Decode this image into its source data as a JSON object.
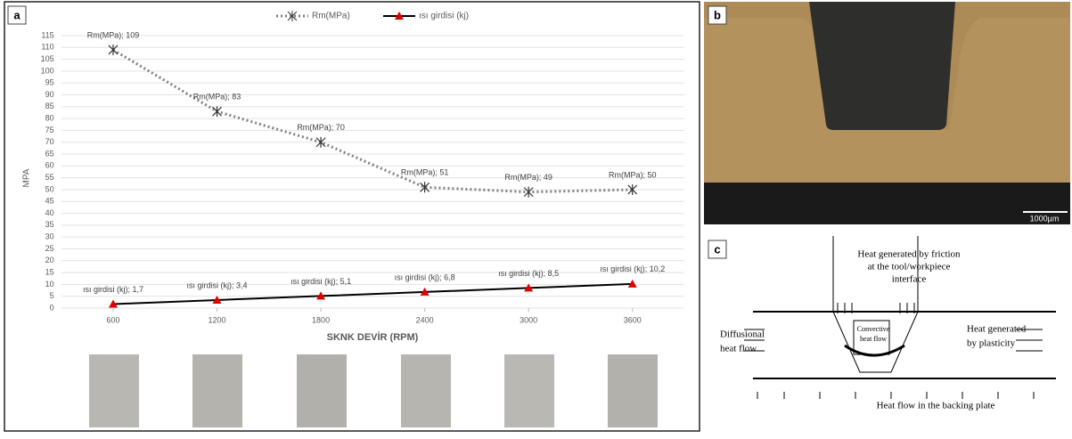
{
  "chart_data": {
    "type": "line",
    "title": null,
    "x_label": "SKNK DEVİR (RPM)",
    "y_label": "MPA",
    "x": [
      600,
      1200,
      1800,
      2400,
      3000,
      3600
    ],
    "xlim": [
      300,
      3900
    ],
    "xticks": [
      600,
      1200,
      1800,
      2400,
      3000,
      3600
    ],
    "ylim": [
      0,
      115
    ],
    "yticks": [
      0,
      5,
      10,
      15,
      20,
      25,
      30,
      35,
      40,
      45,
      50,
      55,
      60,
      65,
      70,
      75,
      80,
      85,
      90,
      95,
      100,
      105,
      110,
      115
    ],
    "grid": true,
    "legend": "top",
    "series": [
      {
        "name": "Rm(MPa)",
        "color": "#808080",
        "values": [
          109,
          83,
          70,
          51,
          49,
          50
        ],
        "value_labels": [
          "Rm(MPa); 109",
          "Rm(MPa); 83",
          "Rm(MPa); 70",
          "Rm(MPa); 51",
          "Rm(MPa); 49",
          "Rm(MPa); 50"
        ]
      },
      {
        "name": "ısı girdisi (kj)",
        "color": "#000000",
        "marker_color": "#e00000",
        "values": [
          1.7,
          3.4,
          5.1,
          6.8,
          8.5,
          10.2
        ],
        "value_labels": [
          "ısı girdisi (kj); 1,7",
          "ısı girdisi (kj); 3,4",
          "ısı girdisi (kj); 5,1",
          "ısı girdisi (kj); 6,8",
          "ısı girdisi (kj); 8,5",
          "ısı girdisi (kj); 10,2"
        ]
      }
    ]
  },
  "panel_labels": [
    "a",
    "b",
    "c"
  ],
  "micrograph": {
    "scale_bar": "1000µm"
  },
  "diagram": {
    "friction": [
      "Heat generated by friction",
      "at the tool/workpiece",
      "interface"
    ],
    "diffusional": [
      "Diffusional",
      "heat flow"
    ],
    "convective": [
      "Convective",
      "heat flow"
    ],
    "plasticity": [
      "Heat generated",
      "by plasticity"
    ],
    "backing": "Heat flow in the backing plate"
  }
}
